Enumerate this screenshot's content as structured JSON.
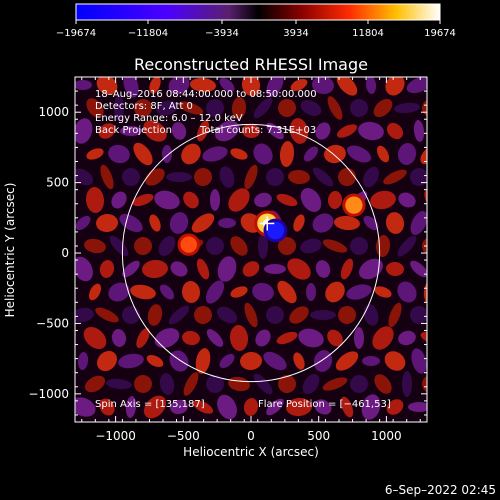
{
  "chart_data": {
    "type": "heatmap",
    "title": "Reconstructed RHESSI Image",
    "xlabel": "Heliocentric X (arcsec)",
    "ylabel": "Heliocentric Y (arcsec)",
    "xlim": [
      -1300,
      1300
    ],
    "ylim": [
      -1200,
      1250
    ],
    "xticks": [
      -1000,
      -500,
      0,
      500,
      1000
    ],
    "yticks": [
      -1000,
      -500,
      0,
      500,
      1000
    ],
    "xtick_labels": [
      "−1000",
      "−500",
      "0",
      "500",
      "1000"
    ],
    "ytick_labels": [
      "−1000",
      "−500",
      "0",
      "500",
      "1000"
    ],
    "colorbar": {
      "range": [
        -19674,
        19674
      ],
      "ticks": [
        "−19674",
        "−11804",
        "−3934",
        "3934",
        "11804",
        "19674"
      ]
    },
    "annotations": {
      "time": "18–Aug–2016 08:44:00.000 to 08:50:00.000",
      "detectors": "Detectors: 8F, Att 0",
      "energy": "Energy Range: 6.0 – 12.0 keV",
      "method": "Back Projection",
      "counts": "Total counts: 7.31E+03",
      "spin_axis": "Spin Axis = [135,187]",
      "flare_position": "Flare Position = [−461,53]"
    },
    "solar_disk_radius": 950,
    "peak_marker": [
      120,
      210
    ],
    "sources": [
      {
        "x": 120,
        "y": 210,
        "value": 19674
      },
      {
        "x": 760,
        "y": 340,
        "value": 13000
      },
      {
        "x": -460,
        "y": 60,
        "value": 11000
      },
      {
        "x": 180,
        "y": 160,
        "value": -14000
      }
    ]
  },
  "footer": {
    "date": "6–Sep–2022 02:45"
  }
}
